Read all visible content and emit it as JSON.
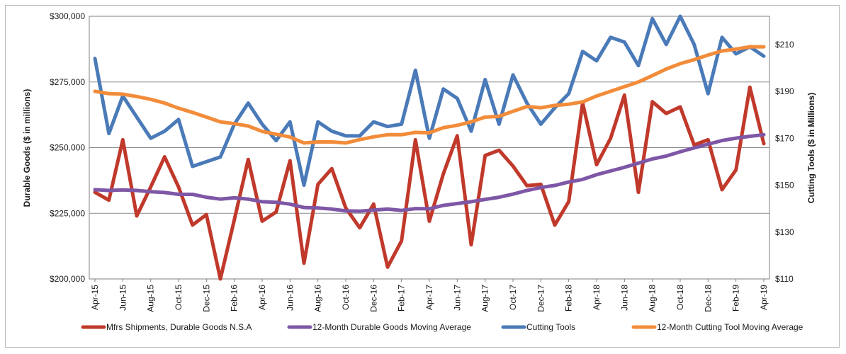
{
  "chart_data": {
    "type": "line",
    "x": [
      "Apr-15",
      "May-15",
      "Jun-15",
      "Jul-15",
      "Aug-15",
      "Sep-15",
      "Oct-15",
      "Nov-15",
      "Dec-15",
      "Jan-16",
      "Feb-16",
      "Mar-16",
      "Apr-16",
      "May-16",
      "Jun-16",
      "Jul-16",
      "Aug-16",
      "Sep-16",
      "Oct-16",
      "Nov-16",
      "Dec-16",
      "Jan-17",
      "Feb-17",
      "Mar-17",
      "Apr-17",
      "May-17",
      "Jun-17",
      "Jul-17",
      "Aug-17",
      "Sep-17",
      "Oct-17",
      "Nov-17",
      "Dec-17",
      "Jan-18",
      "Feb-18",
      "Mar-18",
      "Apr-18",
      "May-18",
      "Jun-18",
      "Jul-18",
      "Aug-18",
      "Sep-18",
      "Oct-18",
      "Nov-18",
      "Dec-18",
      "Jan-19",
      "Feb-19",
      "Mar-19",
      "Apr-19"
    ],
    "x_tick_labels": [
      "Apr-15",
      "Jun-15",
      "Aug-15",
      "Oct-15",
      "Dec-15",
      "Feb-16",
      "Apr-16",
      "Jun-16",
      "Aug-16",
      "Oct-16",
      "Dec-16",
      "Feb-17",
      "Apr-17",
      "Jun-17",
      "Aug-17",
      "Oct-17",
      "Dec-17",
      "Feb-18",
      "Apr-18",
      "Jun-18",
      "Aug-18",
      "Oct-18",
      "Dec-18",
      "Feb-19",
      "Apr-19"
    ],
    "y_left": {
      "label": "Durable Goods ($ in millions)",
      "range": [
        200000,
        300000
      ],
      "ticks": [
        "$200,000",
        "$225,000",
        "$250,000",
        "$275,000",
        "$300,000"
      ]
    },
    "y_right": {
      "label": "Cutting Tools ($ in Millions)",
      "range": [
        110,
        222
      ],
      "ticks": [
        "$110",
        "$130",
        "$150",
        "$170",
        "$190",
        "$210"
      ]
    },
    "grid": true,
    "legend_position": "bottom",
    "series": [
      {
        "name": "Mfrs Shipments, Durable Goods N.S.A",
        "axis": "left",
        "color": "#c0392b",
        "values": [
          233000,
          230000,
          253000,
          224000,
          235000,
          246500,
          235000,
          220500,
          224500,
          200000,
          222500,
          245500,
          222000,
          225500,
          245000,
          206000,
          236000,
          242000,
          227000,
          219500,
          228500,
          204500,
          214500,
          253000,
          222000,
          240000,
          254500,
          213000,
          247000,
          249000,
          243000,
          235500,
          236000,
          220500,
          229500,
          267000,
          243500,
          253500,
          270000,
          233000,
          267500,
          263000,
          265500,
          251000,
          253000,
          234000,
          241500,
          273000,
          251500
        ]
      },
      {
        "name": "12-Month Durable Goods Moving Average",
        "axis": "left",
        "color": "#7e57a6",
        "values": [
          234000,
          233700,
          233900,
          233700,
          233200,
          232900,
          232200,
          232200,
          231100,
          230400,
          230900,
          230400,
          229400,
          229200,
          228500,
          227200,
          227000,
          226600,
          225900,
          225800,
          226200,
          226600,
          226100,
          226800,
          226700,
          228000,
          228700,
          229400,
          230300,
          231100,
          232300,
          233700,
          234800,
          235600,
          236900,
          237900,
          239700,
          241100,
          242500,
          244100,
          245700,
          246800,
          248400,
          249900,
          251300,
          252700,
          253600,
          254300,
          254900
        ]
      },
      {
        "name": "Cutting Tools",
        "axis": "right",
        "color": "#4a7ab8",
        "values": [
          204,
          172,
          188,
          179,
          170,
          173,
          178,
          158,
          160,
          162,
          176,
          185,
          176,
          169,
          177,
          150,
          177,
          173,
          171,
          171,
          177,
          175,
          176,
          199,
          170,
          191,
          187,
          173,
          195,
          176,
          197,
          185,
          176,
          183,
          189,
          207,
          203,
          213,
          211,
          201,
          221,
          210,
          222,
          210,
          189,
          213,
          206,
          209,
          205
        ]
      },
      {
        "name": "12-Month Cutting Tool Moving Average",
        "axis": "right",
        "color": "#f28c3a",
        "values": [
          190,
          189,
          188.8,
          187.8,
          186.6,
          185,
          182.8,
          181,
          179,
          177,
          176.2,
          175.2,
          172.9,
          171.7,
          170.5,
          168,
          168.4,
          168.4,
          168.0,
          169.4,
          170.6,
          171.5,
          171.5,
          172.5,
          172.3,
          174.5,
          175.5,
          177,
          179,
          179.3,
          181.5,
          183.5,
          183,
          184,
          184.5,
          185.5,
          188,
          190,
          192,
          194,
          196.7,
          199.5,
          201.8,
          203.5,
          205.5,
          207.2,
          208,
          209,
          209
        ]
      }
    ]
  }
}
